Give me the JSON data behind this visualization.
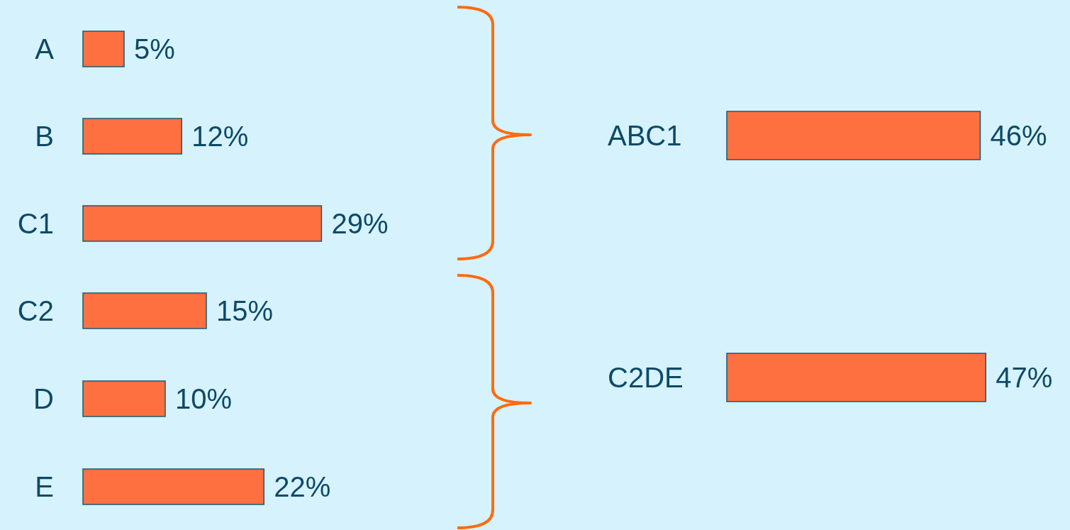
{
  "chart_data": [
    {
      "type": "bar",
      "orientation": "horizontal",
      "categories": [
        "A",
        "B",
        "C1",
        "C2",
        "D",
        "E"
      ],
      "values": [
        5,
        12,
        29,
        15,
        10,
        22
      ],
      "color": "#ff7040",
      "value_labels": [
        "5%",
        "12%",
        "29%",
        "15%",
        "10%",
        "22%"
      ]
    },
    {
      "type": "bar",
      "orientation": "horizontal",
      "categories": [
        "ABC1",
        "C2DE"
      ],
      "values": [
        46,
        47
      ],
      "color": "#ff7040",
      "value_labels": [
        "46%",
        "47%"
      ]
    }
  ]
}
